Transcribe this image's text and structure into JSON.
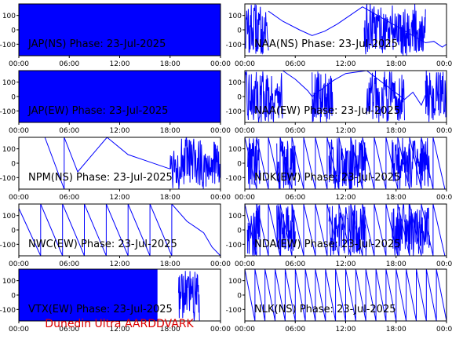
{
  "footer": {
    "credit": "Dunedin Ultra AARDDVARK",
    "color": "#dd0000"
  },
  "colors": {
    "trace": "#0000ff",
    "axis": "#000000",
    "background": "#ffffff"
  },
  "chart_data": [
    {
      "type": "line",
      "title": "JAP(NS) Phase: 23-Jul-2025",
      "xticks": [
        "00:00",
        "06:00",
        "12:00",
        "18:00",
        "00:00"
      ],
      "yticks": [
        "100",
        "0",
        "-100"
      ],
      "xlim": [
        0,
        24
      ],
      "ylim": [
        -180,
        180
      ],
      "pattern": "saturated",
      "activity": [
        [
          0,
          24
        ]
      ],
      "line": [
        [
          23.7,
          120
        ],
        [
          24,
          -130
        ]
      ]
    },
    {
      "type": "line",
      "title": "NAA(NS) Phase: 23-Jul-2025",
      "xticks": [
        "00:00",
        "06:00",
        "12:00",
        "18:00",
        "00:00"
      ],
      "yticks": [
        "100",
        "0",
        "-100"
      ],
      "xlim": [
        0,
        24
      ],
      "ylim": [
        -180,
        180
      ],
      "pattern": "noisy",
      "activity": [
        [
          0,
          2.8
        ],
        [
          14.2,
          21.5
        ]
      ],
      "line": [
        [
          2.8,
          130
        ],
        [
          4.5,
          60
        ],
        [
          6.5,
          0
        ],
        [
          8,
          -40
        ],
        [
          9.5,
          -10
        ],
        [
          11,
          40
        ],
        [
          12.5,
          100
        ],
        [
          14,
          160
        ],
        [
          21.5,
          -90
        ],
        [
          22.5,
          -80
        ],
        [
          23.5,
          -120
        ],
        [
          24,
          -100
        ]
      ]
    },
    {
      "type": "line",
      "title": "JAP(EW) Phase: 23-Jul-2025",
      "xticks": [
        "00:00",
        "06:00",
        "12:00",
        "18:00",
        "00:00"
      ],
      "yticks": [
        "100",
        "0",
        "-100"
      ],
      "xlim": [
        0,
        24
      ],
      "ylim": [
        -180,
        180
      ],
      "pattern": "saturated",
      "activity": [
        [
          0,
          24
        ]
      ],
      "line": [
        [
          23.7,
          120
        ],
        [
          24,
          -140
        ]
      ]
    },
    {
      "type": "line",
      "title": "NAA(EW) Phase: 23-Jul-2025",
      "xticks": [
        "00:00",
        "06:00",
        "12:00",
        "18:00",
        "00:00"
      ],
      "yticks": [
        "100",
        "0",
        "-100"
      ],
      "xlim": [
        0,
        24
      ],
      "ylim": [
        -180,
        180
      ],
      "pattern": "noisy",
      "activity": [
        [
          0,
          4.5
        ],
        [
          8,
          10.5
        ],
        [
          14.5,
          19
        ],
        [
          21.5,
          24
        ]
      ],
      "line": [
        [
          4.5,
          180
        ],
        [
          6,
          120
        ],
        [
          7.5,
          40
        ],
        [
          8,
          0
        ],
        [
          10.5,
          110
        ],
        [
          12,
          160
        ],
        [
          14.5,
          180
        ],
        [
          19,
          -20
        ],
        [
          20,
          30
        ],
        [
          21,
          -60
        ],
        [
          21.5,
          10
        ]
      ]
    },
    {
      "type": "line",
      "title": "NPM(NS) Phase: 23-Jul-2025",
      "xticks": [
        "00:00",
        "06:00",
        "12:00",
        "18:00",
        "00:00"
      ],
      "yticks": [
        "100",
        "0",
        "-100"
      ],
      "xlim": [
        0,
        24
      ],
      "ylim": [
        -180,
        180
      ],
      "pattern": "sawtooth",
      "activity": [
        [
          18,
          24
        ]
      ],
      "line": [
        [
          3.1,
          180
        ],
        [
          5.4,
          -180
        ],
        [
          5.4,
          180
        ],
        [
          7,
          -60
        ],
        [
          10.5,
          180
        ],
        [
          13,
          60
        ],
        [
          15,
          20
        ],
        [
          16.5,
          -10
        ],
        [
          18,
          -40
        ]
      ]
    },
    {
      "type": "line",
      "title": "NDK(EW) Phase: 23-Jul-2025",
      "xticks": [
        "00:00",
        "06:00",
        "12:00",
        "18:00",
        "00:00"
      ],
      "yticks": [
        "100",
        "0",
        "-100"
      ],
      "xlim": [
        0,
        24
      ],
      "ylim": [
        -180,
        180
      ],
      "pattern": "sawtooth",
      "activity": [
        [
          0.3,
          1.8
        ],
        [
          3.8,
          6
        ],
        [
          10,
          14.5
        ],
        [
          17.5,
          22
        ]
      ],
      "line": [
        [
          0,
          180
        ],
        [
          1.4,
          -180
        ],
        [
          1.4,
          180
        ],
        [
          2.8,
          -180
        ],
        [
          2.8,
          180
        ],
        [
          4.2,
          -180
        ],
        [
          4.2,
          180
        ],
        [
          5.6,
          -180
        ],
        [
          5.6,
          180
        ],
        [
          7,
          -180
        ],
        [
          7,
          180
        ],
        [
          8.4,
          -180
        ],
        [
          8.4,
          180
        ],
        [
          9.8,
          -180
        ],
        [
          9.8,
          180
        ],
        [
          11.2,
          -180
        ],
        [
          11.2,
          180
        ],
        [
          12.6,
          -180
        ],
        [
          12.6,
          180
        ],
        [
          14,
          -180
        ],
        [
          14,
          180
        ],
        [
          15.4,
          -180
        ],
        [
          15.4,
          180
        ],
        [
          16.8,
          -180
        ],
        [
          16.8,
          180
        ],
        [
          18.2,
          -180
        ],
        [
          18.2,
          180
        ],
        [
          19.6,
          -180
        ],
        [
          19.6,
          180
        ],
        [
          21,
          -180
        ],
        [
          21,
          180
        ],
        [
          22.4,
          -180
        ],
        [
          22.4,
          180
        ],
        [
          23.8,
          -180
        ]
      ]
    },
    {
      "type": "line",
      "title": "NWC(EW) Phase: 23-Jul-2025",
      "xticks": [
        "00:00",
        "06:00",
        "12:00",
        "18:00",
        "00:00"
      ],
      "yticks": [
        "100",
        "0",
        "-100"
      ],
      "xlim": [
        0,
        24
      ],
      "ylim": [
        -180,
        180
      ],
      "pattern": "sawtooth",
      "activity": [],
      "line": [
        [
          0,
          150
        ],
        [
          2.6,
          -180
        ],
        [
          2.6,
          180
        ],
        [
          5.2,
          -180
        ],
        [
          5.2,
          180
        ],
        [
          7.8,
          -180
        ],
        [
          7.8,
          180
        ],
        [
          10.4,
          -180
        ],
        [
          10.4,
          180
        ],
        [
          13,
          -180
        ],
        [
          13,
          180
        ],
        [
          15.6,
          -180
        ],
        [
          15.6,
          180
        ],
        [
          18.2,
          -180
        ],
        [
          18.2,
          180
        ],
        [
          20,
          60
        ],
        [
          22,
          -20
        ],
        [
          23,
          -120
        ],
        [
          24,
          -180
        ]
      ]
    },
    {
      "type": "line",
      "title": "NDA(EW) Phase: 23-Jul-2025",
      "xticks": [
        "00:00",
        "06:00",
        "12:00",
        "18:00",
        "00:00"
      ],
      "yticks": [
        "100",
        "0",
        "-100"
      ],
      "xlim": [
        0,
        24
      ],
      "ylim": [
        -180,
        180
      ],
      "pattern": "sawtooth",
      "activity": [
        [
          0.3,
          1.8
        ],
        [
          3.8,
          6
        ],
        [
          10,
          14.5
        ],
        [
          17.5,
          22
        ]
      ],
      "line": [
        [
          0,
          180
        ],
        [
          1.4,
          -180
        ],
        [
          1.4,
          180
        ],
        [
          2.8,
          -180
        ],
        [
          2.8,
          180
        ],
        [
          4.2,
          -180
        ],
        [
          4.2,
          180
        ],
        [
          5.6,
          -180
        ],
        [
          5.6,
          180
        ],
        [
          7,
          -180
        ],
        [
          7,
          180
        ],
        [
          8.4,
          -180
        ],
        [
          8.4,
          180
        ],
        [
          9.8,
          -180
        ],
        [
          9.8,
          180
        ],
        [
          11.2,
          -180
        ],
        [
          11.2,
          180
        ],
        [
          12.6,
          -180
        ],
        [
          12.6,
          180
        ],
        [
          14,
          -180
        ],
        [
          14,
          180
        ],
        [
          15.4,
          -180
        ],
        [
          15.4,
          180
        ],
        [
          16.8,
          -180
        ],
        [
          16.8,
          180
        ],
        [
          18.2,
          -180
        ],
        [
          18.2,
          180
        ],
        [
          19.6,
          -180
        ],
        [
          19.6,
          180
        ],
        [
          21,
          -180
        ],
        [
          21,
          180
        ],
        [
          22.4,
          -180
        ],
        [
          22.4,
          180
        ],
        [
          23.8,
          -180
        ]
      ]
    },
    {
      "type": "line",
      "title": "VTX(EW) Phase: 23-Jul-2025",
      "xticks": [
        "00:00",
        "06:00",
        "12:00",
        "18:00",
        "00:00"
      ],
      "yticks": [
        "100",
        "0",
        "-100"
      ],
      "xlim": [
        0,
        24
      ],
      "ylim": [
        -180,
        180
      ],
      "pattern": "saturated",
      "activity": [
        [
          0,
          16.5
        ],
        [
          19,
          21.5
        ]
      ],
      "line": []
    },
    {
      "type": "line",
      "title": "NLK(NS) Phase: 23-Jul-2025",
      "xticks": [
        "00:00",
        "06:00",
        "12:00",
        "18:00",
        "00:00"
      ],
      "yticks": [
        "100",
        "0",
        "-100"
      ],
      "xlim": [
        0,
        24
      ],
      "ylim": [
        -180,
        180
      ],
      "pattern": "sawtooth",
      "activity": [],
      "line": [
        [
          0,
          180
        ],
        [
          1.2,
          -180
        ],
        [
          1.2,
          180
        ],
        [
          2.4,
          -180
        ],
        [
          2.4,
          180
        ],
        [
          3.6,
          -180
        ],
        [
          3.6,
          180
        ],
        [
          4.8,
          -180
        ],
        [
          4.8,
          180
        ],
        [
          6,
          -180
        ],
        [
          6,
          180
        ],
        [
          7.2,
          -180
        ],
        [
          7.2,
          180
        ],
        [
          8.4,
          -180
        ],
        [
          8.4,
          180
        ],
        [
          9.6,
          -180
        ],
        [
          9.6,
          180
        ],
        [
          10.8,
          -180
        ],
        [
          10.8,
          180
        ],
        [
          12,
          -180
        ],
        [
          12,
          180
        ],
        [
          13.2,
          -180
        ],
        [
          13.2,
          180
        ],
        [
          14.4,
          -180
        ],
        [
          14.4,
          180
        ],
        [
          15.6,
          -180
        ],
        [
          15.6,
          180
        ],
        [
          16.8,
          -180
        ],
        [
          16.8,
          180
        ],
        [
          18,
          -180
        ],
        [
          18,
          180
        ],
        [
          19.2,
          -180
        ],
        [
          19.2,
          180
        ],
        [
          20.4,
          -180
        ],
        [
          20.4,
          180
        ],
        [
          21.6,
          -180
        ],
        [
          21.6,
          180
        ],
        [
          22.8,
          -180
        ],
        [
          22.8,
          180
        ],
        [
          24,
          -180
        ]
      ]
    }
  ]
}
